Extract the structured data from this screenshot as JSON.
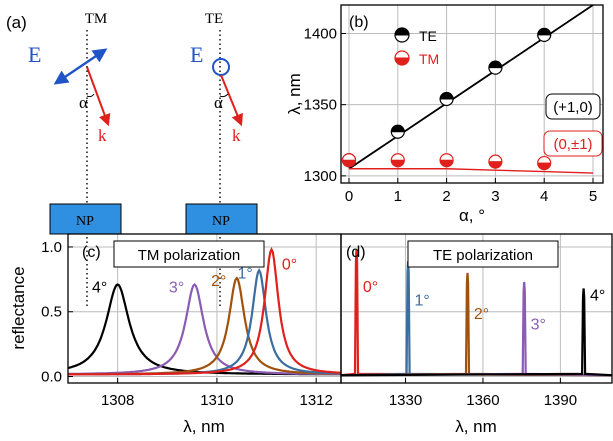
{
  "panel_a": {
    "label": "(a)",
    "tm": {
      "title": "TM",
      "field_label": "E",
      "angle_label": "α",
      "k_label": "k",
      "np_label": "NP"
    },
    "te": {
      "title": "TE",
      "field_label": "E",
      "angle_label": "α",
      "k_label": "k",
      "np_label": "NP"
    },
    "colors": {
      "field": "#1f55c8",
      "k": "#e0201c",
      "np_fill": "#2f8fe0",
      "np_text": "#000000"
    }
  },
  "chart_data": [
    {
      "panel": "(b)",
      "type": "scatter",
      "xlabel": "α, °",
      "ylabel": "λ, nm",
      "xlim": [
        0,
        5
      ],
      "ylim": [
        1295,
        1420
      ],
      "x_ticks": [
        "0",
        "1",
        "2",
        "3",
        "4",
        "5"
      ],
      "y_ticks": [
        "1300",
        "1350",
        "1400"
      ],
      "grid": true,
      "legend": {
        "placement": "top-left",
        "entries": [
          "TE",
          "TM"
        ]
      },
      "series": [
        {
          "name": "TE",
          "color": "#000000",
          "x": [
            0,
            1,
            2,
            3,
            4
          ],
          "y": [
            1311,
            1331,
            1354,
            1376,
            1399
          ]
        },
        {
          "name": "TM",
          "color": "#e0201c",
          "x": [
            0,
            1,
            2,
            3,
            4
          ],
          "y": [
            1311,
            1311,
            1311,
            1310,
            1309
          ]
        }
      ],
      "fit_lines": [
        {
          "label": "(+1,0)",
          "color": "#000000",
          "x": [
            0,
            5
          ],
          "y": [
            1305,
            1420
          ]
        },
        {
          "label": "(0,±1)",
          "color": "#e0201c",
          "x": [
            0,
            1,
            2,
            3,
            4,
            5
          ],
          "y": [
            1305,
            1305,
            1305,
            1304,
            1303,
            1302
          ]
        }
      ]
    },
    {
      "panel": "(c)",
      "type": "line",
      "title": "TM polarization",
      "xlabel": "λ, nm",
      "ylabel": "reflectance",
      "xlim": [
        1307,
        1312.5
      ],
      "ylim": [
        -0.05,
        1.1
      ],
      "x_ticks": [
        "1308",
        "1310",
        "1312"
      ],
      "y_ticks": [
        "0.0",
        "0.5",
        "1.0"
      ],
      "grid": true,
      "series": [
        {
          "name": "4°",
          "color": "#000000",
          "center": 1308.0,
          "peak": 0.71,
          "width": 0.28
        },
        {
          "name": "3°",
          "color": "#8a5cb4",
          "center": 1309.55,
          "peak": 0.71,
          "width": 0.22
        },
        {
          "name": "2°",
          "color": "#a0520c",
          "center": 1310.4,
          "peak": 0.76,
          "width": 0.19
        },
        {
          "name": "1°",
          "color": "#3a6ea0",
          "center": 1310.85,
          "peak": 0.82,
          "width": 0.17
        },
        {
          "name": "0°",
          "color": "#e0201c",
          "center": 1311.1,
          "peak": 0.98,
          "width": 0.17
        }
      ]
    },
    {
      "panel": "(d)",
      "type": "line",
      "title": "TE polarization",
      "xlabel": "λ, nm",
      "xlim": [
        1305,
        1410
      ],
      "ylim": [
        -0.05,
        1.1
      ],
      "x_ticks": [
        "1330",
        "1360",
        "1390"
      ],
      "grid": true,
      "series": [
        {
          "name": "0°",
          "color": "#e0201c",
          "center": 1311,
          "peak": 0.98
        },
        {
          "name": "1°",
          "color": "#3a6ea0",
          "center": 1331,
          "peak": 0.89
        },
        {
          "name": "2°",
          "color": "#a0520c",
          "center": 1354,
          "peak": 0.8
        },
        {
          "name": "3°",
          "color": "#8a5cb4",
          "center": 1376,
          "peak": 0.73
        },
        {
          "name": "4°",
          "color": "#000000",
          "center": 1399,
          "peak": 0.68
        }
      ]
    }
  ]
}
